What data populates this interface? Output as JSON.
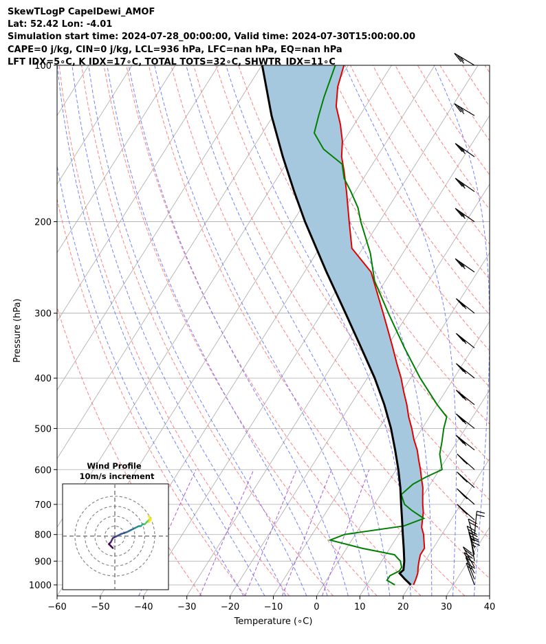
{
  "header": {
    "line1": "SkewTLogP CapelDewi_AMOF",
    "line2": "Lat: 52.42   Lon: -4.01",
    "line3": "Simulation start time: 2024-07-28_00:00:00, Valid time: 2024-07-30T15:00:00.00",
    "line4": "CAPE=0 j/kg, CIN=0 j/kg, LCL=936 hPa, LFC=nan hPa, EQ=nan hPa",
    "line5": "LFT IDX=5∘C, K IDX=17∘C, TOTAL TOTS=32∘C, SHWTR_IDX=11∘C"
  },
  "chart_data": {
    "type": "line",
    "chart_kind": "skew-T log-P diagram",
    "xlabel": "Temperature (∘C)",
    "ylabel": "Pressure (hPa)",
    "xlim": [
      -60,
      40
    ],
    "ylim": [
      1050,
      100
    ],
    "y_scale": "log",
    "skew": "isotherms slanted up-right",
    "grid": true,
    "x_ticks": [
      -60,
      -50,
      -40,
      -30,
      -20,
      -10,
      0,
      10,
      20,
      30,
      40
    ],
    "y_ticks": [
      1000,
      900,
      800,
      700,
      600,
      500,
      400,
      300,
      200,
      100
    ],
    "colors": {
      "temperature": "#e00000",
      "dewpoint": "#008000",
      "parcel": "#000000",
      "shading": "#a6c8df",
      "dry_adiabats": "#ff6a6a",
      "moist_adiabats": "#5a6cff",
      "mixing_ratio": "#9a3fd0",
      "isotherms": "#a9a9a9"
    },
    "series": [
      {
        "series_key": "temperature",
        "color": "#e00000",
        "p": [
          1000,
          975,
          950,
          925,
          900,
          875,
          850,
          825,
          800,
          775,
          750,
          725,
          700,
          675,
          650,
          625,
          600,
          575,
          550,
          525,
          500,
          475,
          450,
          425,
          400,
          375,
          350,
          325,
          300,
          275,
          250,
          225,
          200,
          175,
          160,
          150,
          140,
          130,
          120,
          110,
          100
        ],
        "t": [
          20.8,
          20.5,
          20.1,
          19.3,
          18.6,
          18.0,
          18.0,
          16.9,
          15.8,
          14.3,
          13.4,
          12.5,
          11.2,
          10.0,
          8.8,
          7.2,
          5.6,
          3.8,
          2.0,
          -0.3,
          -2.4,
          -4.8,
          -7.0,
          -9.6,
          -12.2,
          -15.3,
          -18.5,
          -22.0,
          -25.8,
          -30.0,
          -34.6,
          -42.5,
          -47.0,
          -52.0,
          -55.5,
          -58.2,
          -60.3,
          -63.2,
          -66.8,
          -69.3,
          -71.0
        ]
      },
      {
        "series_key": "dewpoint",
        "color": "#008000",
        "p": [
          1000,
          980,
          960,
          940,
          925,
          900,
          875,
          850,
          820,
          800,
          770,
          745,
          720,
          700,
          670,
          640,
          620,
          600,
          560,
          530,
          500,
          475,
          450,
          400,
          350,
          300,
          260,
          230,
          200,
          188,
          175,
          165,
          155,
          145,
          135,
          125,
          115,
          100
        ],
        "t": [
          16.5,
          14.0,
          14.0,
          15.5,
          15.5,
          14.3,
          12.0,
          3.5,
          -5.0,
          -2.5,
          10.0,
          13.5,
          9.7,
          7.0,
          4.8,
          6.0,
          8.0,
          10.6,
          7.8,
          6.5,
          5.0,
          4.0,
          0.0,
          -7.8,
          -15.8,
          -24.6,
          -32.5,
          -37.5,
          -44.3,
          -47.0,
          -51.0,
          -54.5,
          -57.0,
          -63.5,
          -68.0,
          -69.5,
          -71.0,
          -73.0
        ]
      },
      {
        "series_key": "parcel",
        "color": "#000000",
        "p": [
          1000,
          975,
          950,
          936,
          900,
          850,
          800,
          750,
          700,
          650,
          600,
          550,
          500,
          450,
          400,
          350,
          300,
          250,
          200,
          175,
          150,
          125,
          100
        ],
        "t": [
          20.2,
          18.0,
          15.9,
          16.3,
          15.2,
          13.2,
          11.0,
          8.7,
          6.2,
          3.6,
          0.5,
          -3.1,
          -7.2,
          -12.2,
          -18.3,
          -25.8,
          -34.5,
          -44.9,
          -57.2,
          -64.1,
          -71.8,
          -80.4,
          -89.9
        ]
      }
    ],
    "wind_barbs": {
      "p": [
        1000,
        975,
        950,
        925,
        900,
        875,
        850,
        825,
        800,
        750,
        700,
        650,
        600,
        550,
        500,
        450,
        400,
        350,
        300,
        250,
        200,
        175,
        150,
        125,
        100
      ],
      "u": [
        3,
        2,
        3,
        5,
        2,
        3,
        4,
        3,
        -1,
        10,
        10,
        10,
        10,
        10,
        10,
        10,
        10,
        10,
        10,
        10,
        10,
        10,
        10,
        10,
        10
      ],
      "v": [
        8,
        5,
        6,
        9,
        12,
        12,
        12,
        11,
        10,
        9,
        9,
        9,
        9,
        8,
        8,
        8,
        8,
        8,
        8,
        7,
        7,
        7,
        7,
        6,
        6
      ]
    },
    "inset": {
      "title": "Wind Profile",
      "subtitle": "10m/s increment",
      "rings_ms": [
        10,
        20,
        30,
        40
      ],
      "hodograph_u": [
        -1,
        -2,
        -3,
        -2,
        -1,
        1,
        3,
        6,
        8,
        10,
        12,
        13,
        14,
        15,
        16,
        17,
        18,
        17,
        18,
        17
      ],
      "hodograph_v": [
        -6,
        -5,
        -4,
        -3,
        -1,
        0,
        1,
        2,
        3,
        4,
        5,
        5,
        6,
        6,
        7,
        8,
        9,
        10,
        8,
        7
      ]
    }
  }
}
